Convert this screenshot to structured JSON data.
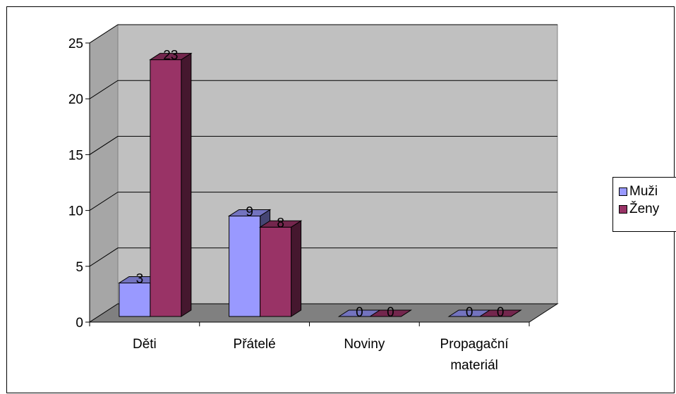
{
  "chart_data": {
    "type": "bar",
    "style": "3d-clustered-column",
    "categories": [
      "Děti",
      "Přátelé",
      "Noviny",
      "Propagační materiál"
    ],
    "category_label_lines": [
      [
        "Děti"
      ],
      [
        "Přátelé"
      ],
      [
        "Noviny"
      ],
      [
        "Propagační",
        "materiál"
      ]
    ],
    "series": [
      {
        "name": "Muži",
        "values": [
          3,
          9,
          0,
          0
        ],
        "color": "#9999ff"
      },
      {
        "name": "Ženy",
        "values": [
          23,
          8,
          0,
          0
        ],
        "color": "#993366"
      }
    ],
    "ylim": [
      0,
      25
    ],
    "yticks": [
      0,
      5,
      10,
      15,
      20,
      25
    ],
    "data_labels": true,
    "grid": true,
    "legend": "right",
    "wall_color": "#c0c0c0",
    "floor_color": "#808080"
  }
}
